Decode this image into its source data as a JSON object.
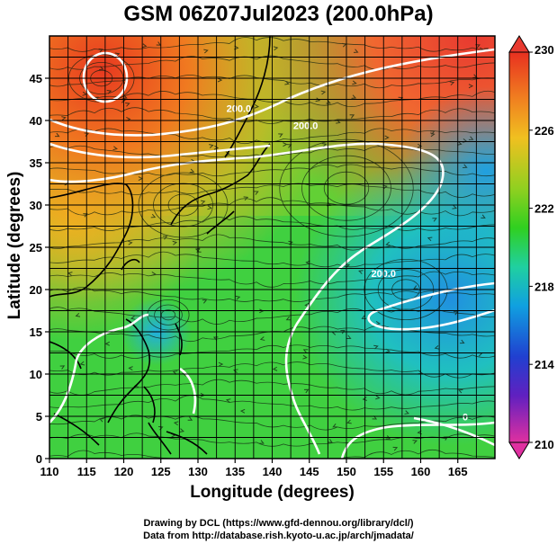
{
  "title": "GSM 06Z07Jul2023 (200.0hPa)",
  "xlabel": "Longitude (degrees)",
  "ylabel": "Latitude  (degrees)",
  "credits": {
    "line1": "Drawing by DCL (https://www.gfd-dennou.org/library/dcl/)",
    "line2": "Data from http://database.rish.kyoto-u.ac.jp/arch/jmadata/"
  },
  "map": {
    "lon_range": [
      110,
      170
    ],
    "lat_range": [
      0,
      50
    ],
    "lon_ticks": [
      110,
      115,
      120,
      125,
      130,
      135,
      140,
      145,
      150,
      155,
      160,
      165
    ],
    "lat_ticks": [
      0,
      5,
      10,
      15,
      20,
      25,
      30,
      35,
      40,
      45
    ],
    "grid": true,
    "field": "200hPa temperature (shading) with streamlines",
    "contour_labels": [
      {
        "text": "200.0",
        "lon": 144.5,
        "lat": 39
      },
      {
        "text": "200.0",
        "lon": 135.5,
        "lat": 41
      },
      {
        "text": "200.0",
        "lon": 155,
        "lat": 21.5
      },
      {
        "text": "0",
        "lon": 166,
        "lat": 4.5
      }
    ]
  },
  "colorbar": {
    "min": 210,
    "max": 230,
    "ticks": [
      "230",
      "226",
      "222",
      "218",
      "214",
      "210"
    ],
    "colors": [
      "#e03070",
      "#6020c0",
      "#2040d0",
      "#10a0e0",
      "#20d0a0",
      "#30d020",
      "#90d020",
      "#f0c020",
      "#f08020",
      "#e83020"
    ]
  }
}
